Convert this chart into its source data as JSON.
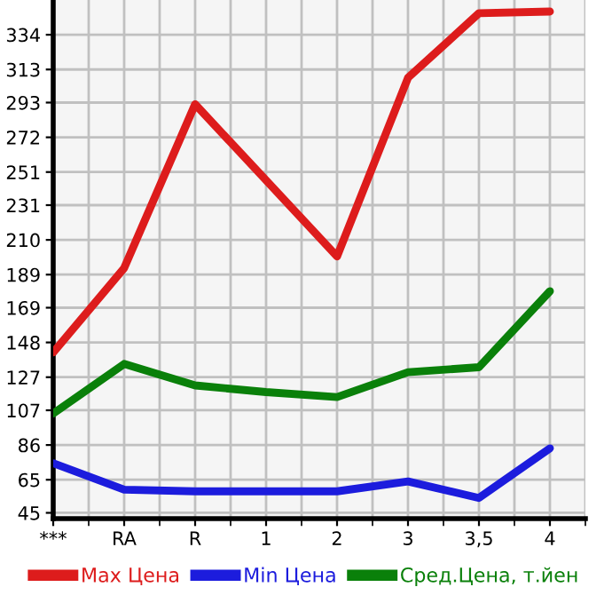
{
  "chart_data": {
    "type": "line",
    "categories": [
      "***",
      "RA",
      "R",
      "1",
      "2",
      "3",
      "3,5",
      "4"
    ],
    "series": [
      {
        "name": "Max Цена",
        "color": "#dd1c1c",
        "values": [
          142,
          193,
          292,
          246,
          200,
          308,
          347,
          348
        ]
      },
      {
        "name": "Min Цена",
        "color": "#1c1cdd",
        "values": [
          75,
          59,
          58,
          58,
          58,
          64,
          54,
          84
        ]
      },
      {
        "name": "Сред.Цена, т.йен",
        "color": "#0a800a",
        "values": [
          105,
          135,
          122,
          118,
          115,
          130,
          133,
          179
        ]
      }
    ],
    "ylim": [
      41.5,
      355
    ],
    "yticks": [
      45,
      65,
      86,
      107,
      127,
      148,
      169,
      189,
      210,
      231,
      251,
      272,
      293,
      313,
      334
    ],
    "grid": true,
    "legend": "bottom",
    "marker": "none",
    "line_style": "solid"
  }
}
